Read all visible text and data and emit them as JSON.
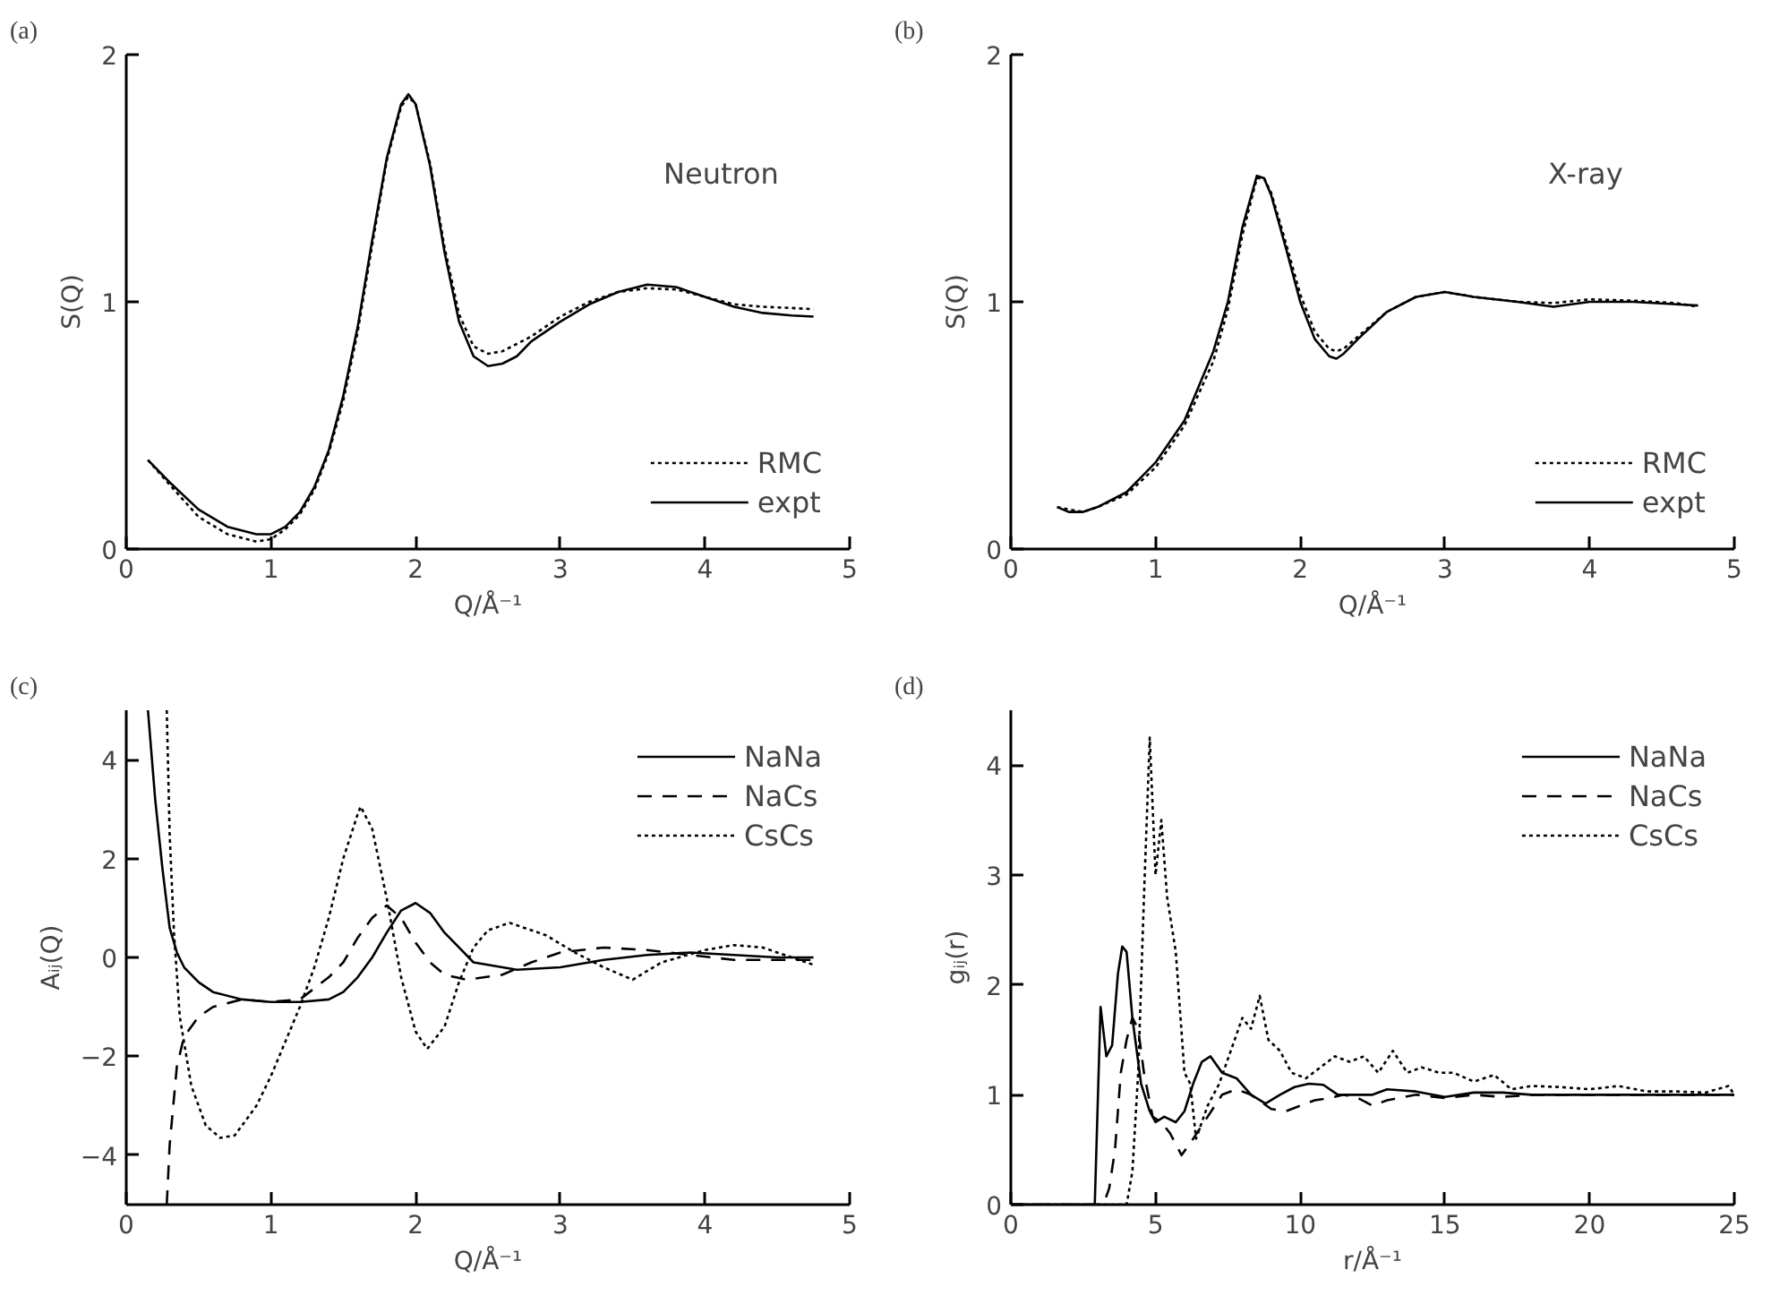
{
  "chart_data": [
    {
      "type": "line",
      "title": "(a)",
      "xlabel": "Q/Å⁻¹",
      "ylabel": "S(Q)",
      "annotations": [
        "Neutron"
      ],
      "xlim": [
        0,
        5
      ],
      "ylim": [
        0,
        2
      ],
      "xticks": [
        0,
        1,
        2,
        3,
        4,
        5
      ],
      "yticks": [
        0,
        1,
        2
      ],
      "grid": false,
      "legend": "bottom right",
      "marker": "none",
      "series": [
        {
          "name": "RMC",
          "color": "#000000",
          "line_style": "dotted",
          "x": [
            0.15,
            0.3,
            0.5,
            0.7,
            0.9,
            1.0,
            1.1,
            1.2,
            1.3,
            1.4,
            1.5,
            1.6,
            1.7,
            1.8,
            1.9,
            1.95,
            2.0,
            2.1,
            2.2,
            2.3,
            2.4,
            2.5,
            2.6,
            2.8,
            3.0,
            3.2,
            3.4,
            3.6,
            3.8,
            4.0,
            4.2,
            4.4,
            4.6,
            4.75
          ],
          "values": [
            0.36,
            0.26,
            0.13,
            0.06,
            0.03,
            0.04,
            0.08,
            0.14,
            0.24,
            0.39,
            0.6,
            0.88,
            1.23,
            1.57,
            1.79,
            1.83,
            1.8,
            1.56,
            1.22,
            0.95,
            0.82,
            0.79,
            0.8,
            0.86,
            0.94,
            1.0,
            1.04,
            1.055,
            1.05,
            1.02,
            0.99,
            0.98,
            0.975,
            0.97
          ]
        },
        {
          "name": "expt",
          "color": "#000000",
          "line_style": "solid",
          "x": [
            0.15,
            0.3,
            0.5,
            0.7,
            0.9,
            1.0,
            1.1,
            1.2,
            1.3,
            1.4,
            1.5,
            1.6,
            1.7,
            1.8,
            1.9,
            1.95,
            2.0,
            2.1,
            2.2,
            2.3,
            2.4,
            2.5,
            2.6,
            2.7,
            2.8,
            3.0,
            3.2,
            3.4,
            3.6,
            3.8,
            4.0,
            4.2,
            4.4,
            4.6,
            4.75
          ],
          "values": [
            0.36,
            0.27,
            0.16,
            0.09,
            0.06,
            0.06,
            0.09,
            0.15,
            0.25,
            0.4,
            0.62,
            0.9,
            1.25,
            1.58,
            1.8,
            1.84,
            1.8,
            1.55,
            1.2,
            0.92,
            0.78,
            0.74,
            0.75,
            0.78,
            0.84,
            0.92,
            0.99,
            1.04,
            1.07,
            1.06,
            1.02,
            0.98,
            0.955,
            0.945,
            0.94
          ]
        }
      ]
    },
    {
      "type": "line",
      "title": "(b)",
      "xlabel": "Q/Å⁻¹",
      "ylabel": "S(Q)",
      "annotations": [
        "X-ray"
      ],
      "xlim": [
        0,
        5
      ],
      "ylim": [
        0,
        2
      ],
      "xticks": [
        0,
        1,
        2,
        3,
        4,
        5
      ],
      "yticks": [
        0,
        1,
        2
      ],
      "grid": false,
      "legend": "bottom right",
      "marker": "none",
      "series": [
        {
          "name": "RMC",
          "color": "#000000",
          "line_style": "dotted",
          "x": [
            0.32,
            0.4,
            0.5,
            0.6,
            0.8,
            1.0,
            1.2,
            1.4,
            1.5,
            1.6,
            1.7,
            1.75,
            1.8,
            1.9,
            2.0,
            2.1,
            2.2,
            2.25,
            2.3,
            2.4,
            2.6,
            2.8,
            3.0,
            3.2,
            3.5,
            3.75,
            4.0,
            4.3,
            4.6,
            4.75
          ],
          "values": [
            0.17,
            0.16,
            0.15,
            0.17,
            0.22,
            0.33,
            0.5,
            0.76,
            0.97,
            1.27,
            1.5,
            1.5,
            1.44,
            1.24,
            1.03,
            0.88,
            0.81,
            0.8,
            0.81,
            0.86,
            0.96,
            1.02,
            1.04,
            1.02,
            1.0,
            0.995,
            1.01,
            1.005,
            0.995,
            0.98
          ]
        },
        {
          "name": "expt",
          "color": "#000000",
          "line_style": "solid",
          "x": [
            0.32,
            0.4,
            0.5,
            0.6,
            0.8,
            1.0,
            1.2,
            1.4,
            1.5,
            1.6,
            1.7,
            1.75,
            1.8,
            1.9,
            2.0,
            2.1,
            2.2,
            2.25,
            2.3,
            2.4,
            2.6,
            2.8,
            3.0,
            3.2,
            3.5,
            3.75,
            4.0,
            4.3,
            4.6,
            4.75
          ],
          "values": [
            0.17,
            0.15,
            0.15,
            0.17,
            0.23,
            0.35,
            0.52,
            0.8,
            1.0,
            1.3,
            1.51,
            1.5,
            1.43,
            1.22,
            1.0,
            0.85,
            0.78,
            0.77,
            0.79,
            0.85,
            0.96,
            1.02,
            1.04,
            1.02,
            1.0,
            0.98,
            1.0,
            1.0,
            0.99,
            0.985
          ]
        }
      ]
    },
    {
      "type": "line",
      "title": "(c)",
      "xlabel": "Q/Å⁻¹",
      "ylabel": "Aᵢⱼ(Q)",
      "xlim": [
        0,
        5
      ],
      "ylim": [
        -5,
        5
      ],
      "xticks": [
        0,
        1,
        2,
        3,
        4,
        5
      ],
      "yticks": [
        -4,
        -2,
        0,
        2,
        4
      ],
      "grid": false,
      "legend": "top right",
      "marker": "none",
      "series": [
        {
          "name": "NaNa",
          "color": "#000000",
          "line_style": "solid",
          "x": [
            0.15,
            0.2,
            0.25,
            0.3,
            0.35,
            0.4,
            0.5,
            0.6,
            0.8,
            1.0,
            1.2,
            1.4,
            1.5,
            1.6,
            1.7,
            1.8,
            1.9,
            2.0,
            2.1,
            2.2,
            2.3,
            2.4,
            2.5,
            2.7,
            3.0,
            3.3,
            3.6,
            3.9,
            4.2,
            4.5,
            4.75
          ],
          "values": [
            5,
            3.2,
            1.8,
            0.6,
            0.1,
            -0.2,
            -0.5,
            -0.7,
            -0.85,
            -0.9,
            -0.9,
            -0.85,
            -0.7,
            -0.4,
            0.0,
            0.5,
            0.95,
            1.1,
            0.9,
            0.5,
            0.2,
            -0.1,
            -0.15,
            -0.25,
            -0.2,
            -0.05,
            0.05,
            0.1,
            0.05,
            0.0,
            0.0
          ]
        },
        {
          "name": "NaCs",
          "color": "#000000",
          "line_style": "dashed",
          "x": [
            0.28,
            0.3,
            0.35,
            0.4,
            0.5,
            0.6,
            0.8,
            1.0,
            1.2,
            1.4,
            1.5,
            1.6,
            1.7,
            1.8,
            1.9,
            2.0,
            2.1,
            2.2,
            2.35,
            2.6,
            2.8,
            3.0,
            3.3,
            3.6,
            3.9,
            4.2,
            4.5,
            4.75
          ],
          "values": [
            -5,
            -3.8,
            -2.2,
            -1.6,
            -1.2,
            -1.0,
            -0.85,
            -0.9,
            -0.85,
            -0.4,
            -0.1,
            0.4,
            0.8,
            1.05,
            0.8,
            0.3,
            -0.1,
            -0.35,
            -0.45,
            -0.35,
            -0.1,
            0.1,
            0.2,
            0.15,
            0.05,
            -0.05,
            -0.05,
            -0.05
          ]
        },
        {
          "name": "CsCs",
          "color": "#000000",
          "line_style": "dotted",
          "x": [
            0.28,
            0.3,
            0.33,
            0.37,
            0.45,
            0.55,
            0.65,
            0.75,
            0.9,
            1.0,
            1.2,
            1.3,
            1.4,
            1.5,
            1.6,
            1.62,
            1.7,
            1.8,
            1.9,
            2.0,
            2.08,
            2.2,
            2.3,
            2.4,
            2.5,
            2.65,
            2.9,
            3.1,
            3.3,
            3.5,
            3.7,
            4.0,
            4.2,
            4.4,
            4.6,
            4.75
          ],
          "values": [
            5,
            2.5,
            0.5,
            -1.2,
            -2.6,
            -3.4,
            -3.65,
            -3.6,
            -3.0,
            -2.4,
            -1.0,
            -0.2,
            0.8,
            2.0,
            2.9,
            3.05,
            2.6,
            1.2,
            -0.4,
            -1.5,
            -1.85,
            -1.4,
            -0.5,
            0.2,
            0.55,
            0.7,
            0.45,
            0.1,
            -0.2,
            -0.45,
            -0.1,
            0.15,
            0.25,
            0.2,
            0.0,
            -0.15
          ]
        }
      ]
    },
    {
      "type": "line",
      "title": "(d)",
      "xlabel": "r/Å⁻¹",
      "ylabel": "gᵢⱼ(r)",
      "xlim": [
        0,
        25
      ],
      "ylim": [
        0,
        4.5
      ],
      "xticks": [
        0,
        5,
        10,
        15,
        20,
        25
      ],
      "yticks": [
        0,
        1,
        2,
        3,
        4
      ],
      "grid": false,
      "legend": "top right",
      "marker": "none",
      "series": [
        {
          "name": "NaNa",
          "color": "#000000",
          "line_style": "solid",
          "x": [
            0,
            2.9,
            3.0,
            3.1,
            3.3,
            3.5,
            3.7,
            3.85,
            4.0,
            4.2,
            4.5,
            4.8,
            5.0,
            5.3,
            5.7,
            6.0,
            6.3,
            6.6,
            6.9,
            7.3,
            7.8,
            8.3,
            8.8,
            9.3,
            9.8,
            10.3,
            10.8,
            11.3,
            12,
            12.5,
            13,
            14,
            15,
            16,
            17,
            18,
            19,
            20,
            21,
            22,
            23,
            24,
            25
          ],
          "values": [
            0,
            0,
            0.9,
            1.8,
            1.35,
            1.45,
            2.1,
            2.35,
            2.3,
            1.7,
            1.1,
            0.85,
            0.75,
            0.8,
            0.75,
            0.85,
            1.1,
            1.3,
            1.35,
            1.2,
            1.15,
            1.0,
            0.92,
            1.0,
            1.07,
            1.1,
            1.09,
            1.0,
            1.0,
            1.0,
            1.05,
            1.03,
            0.98,
            1.02,
            1.02,
            1.0,
            1.0,
            1.0,
            1.0,
            1.0,
            1.0,
            1.0,
            1.0
          ]
        },
        {
          "name": "NaCs",
          "color": "#000000",
          "line_style": "dashed",
          "x": [
            0,
            3.2,
            3.4,
            3.6,
            3.8,
            4.0,
            4.2,
            4.4,
            4.6,
            4.9,
            5.2,
            5.5,
            5.9,
            6.3,
            6.8,
            7.3,
            7.8,
            8.3,
            9.0,
            9.5,
            10,
            10.5,
            11,
            11.5,
            12,
            12.5,
            13,
            14,
            15,
            16,
            17,
            18,
            20,
            22,
            25
          ],
          "values": [
            0,
            0,
            0.15,
            0.5,
            1.2,
            1.5,
            1.7,
            1.6,
            1.2,
            0.8,
            0.75,
            0.65,
            0.45,
            0.6,
            0.8,
            1.0,
            1.05,
            1.0,
            0.87,
            0.85,
            0.9,
            0.95,
            0.97,
            1.0,
            0.97,
            0.9,
            0.95,
            1.0,
            0.97,
            1.0,
            0.98,
            1.0,
            1.0,
            1.0,
            1.0
          ]
        },
        {
          "name": "CsCs",
          "color": "#000000",
          "line_style": "dotted",
          "x": [
            0,
            4.0,
            4.2,
            4.4,
            4.6,
            4.8,
            5.0,
            5.2,
            5.4,
            5.7,
            6.0,
            6.2,
            6.4,
            6.8,
            7.2,
            7.6,
            8.0,
            8.3,
            8.6,
            8.9,
            9.3,
            9.7,
            10.2,
            10.7,
            11.2,
            11.7,
            12.2,
            12.7,
            13.2,
            13.7,
            14.2,
            14.8,
            15.3,
            16,
            16.7,
            17.3,
            18,
            19,
            20,
            21,
            22,
            23,
            24,
            24.8,
            25
          ],
          "values": [
            0,
            0,
            0.3,
            1.2,
            2.8,
            4.25,
            3.0,
            3.5,
            2.8,
            2.3,
            1.2,
            1.1,
            0.6,
            0.9,
            1.1,
            1.4,
            1.7,
            1.6,
            1.9,
            1.5,
            1.4,
            1.2,
            1.15,
            1.25,
            1.35,
            1.3,
            1.35,
            1.2,
            1.4,
            1.2,
            1.25,
            1.2,
            1.2,
            1.12,
            1.18,
            1.05,
            1.08,
            1.07,
            1.05,
            1.08,
            1.03,
            1.03,
            1.02,
            1.08,
            1.0
          ]
        }
      ]
    }
  ]
}
